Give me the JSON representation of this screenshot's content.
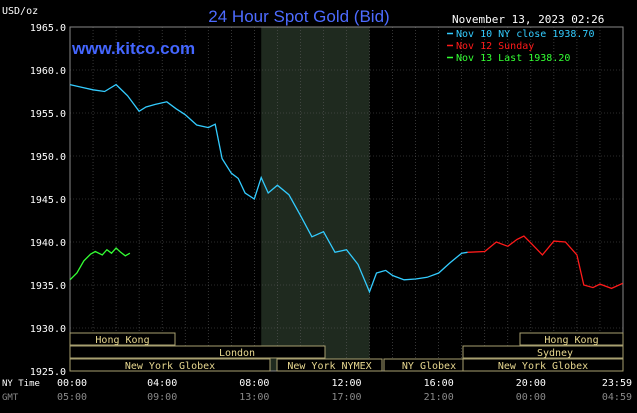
{
  "chart_data": {
    "type": "line",
    "title": "24 Hour Spot Gold (Bid)",
    "watermark": "www.kitco.com",
    "timestamp": "November 13, 2023 02:26",
    "ylabel": "USD/oz",
    "ylim": [
      1925,
      1965
    ],
    "yticks": [
      "1965.0",
      "1960.0",
      "1955.0",
      "1950.0",
      "1945.0",
      "1940.0",
      "1935.0",
      "1930.0",
      "1925.0"
    ],
    "xlim": [
      0,
      24
    ],
    "x_rows": [
      {
        "label": "NY Time",
        "ticks": [
          "00:00",
          "04:00",
          "08:00",
          "12:00",
          "16:00",
          "20:00",
          "23:59"
        ]
      },
      {
        "label": "GMT",
        "ticks": [
          "05:00",
          "09:00",
          "13:00",
          "17:00",
          "21:00",
          "00:00",
          "04:59"
        ]
      }
    ],
    "grid": true,
    "legend_position": "top-right",
    "series": [
      {
        "name": "Nov 10 NY close 1938.70",
        "color": "#33ccff",
        "x": [
          0,
          0.5,
          1.0,
          1.5,
          2.0,
          2.5,
          3.0,
          3.3,
          3.7,
          4.2,
          4.6,
          5.0,
          5.5,
          6.0,
          6.3,
          6.6,
          7.0,
          7.3,
          7.6,
          8.0,
          8.3,
          8.6,
          9.0,
          9.5,
          10.0,
          10.5,
          11.0,
          11.5,
          12.0,
          12.5,
          13.0,
          13.3,
          13.7,
          14.0,
          14.5,
          15.0,
          15.5,
          16.0,
          16.5,
          17.0,
          17.25
        ],
        "y": [
          1958.3,
          1958.0,
          1957.7,
          1957.5,
          1958.3,
          1957.0,
          1955.2,
          1955.7,
          1956.0,
          1956.3,
          1955.5,
          1954.8,
          1953.6,
          1953.3,
          1953.7,
          1949.7,
          1948.0,
          1947.4,
          1945.7,
          1945.0,
          1947.5,
          1945.7,
          1946.6,
          1945.5,
          1943.1,
          1940.6,
          1941.2,
          1938.8,
          1939.1,
          1937.4,
          1934.2,
          1936.4,
          1936.7,
          1936.1,
          1935.6,
          1935.7,
          1935.9,
          1936.4,
          1937.6,
          1938.7,
          1938.8
        ]
      },
      {
        "name": "Nov 12 Sunday",
        "color": "#ff1a1a",
        "x": [
          17.25,
          18.0,
          18.5,
          19.0,
          19.4,
          19.7,
          20.0,
          20.5,
          21.0,
          21.5,
          22.0,
          22.3,
          22.7,
          23.0,
          23.5,
          23.99
        ],
        "y": [
          1938.8,
          1938.9,
          1940.0,
          1939.5,
          1940.3,
          1940.7,
          1939.9,
          1938.5,
          1940.1,
          1940.0,
          1938.5,
          1935.0,
          1934.7,
          1935.1,
          1934.6,
          1935.2
        ]
      },
      {
        "name": "Nov 13 Last 1938.20",
        "color": "#33ff33",
        "x": [
          0,
          0.3,
          0.6,
          0.9,
          1.1,
          1.4,
          1.6,
          1.8,
          2.0,
          2.2,
          2.4,
          2.6
        ],
        "y": [
          1935.6,
          1936.4,
          1937.8,
          1938.6,
          1938.9,
          1938.5,
          1939.1,
          1938.7,
          1939.3,
          1938.8,
          1938.4,
          1938.7
        ]
      }
    ]
  },
  "sessions": [
    {
      "label": "Hong Kong"
    },
    {
      "label": "London"
    },
    {
      "label": "New York Globex"
    },
    {
      "label": "New York NYMEX"
    },
    {
      "label": "NY Globex"
    },
    {
      "label": "Hong Kong"
    },
    {
      "label": "Sydney"
    },
    {
      "label": "New York Globex"
    }
  ]
}
